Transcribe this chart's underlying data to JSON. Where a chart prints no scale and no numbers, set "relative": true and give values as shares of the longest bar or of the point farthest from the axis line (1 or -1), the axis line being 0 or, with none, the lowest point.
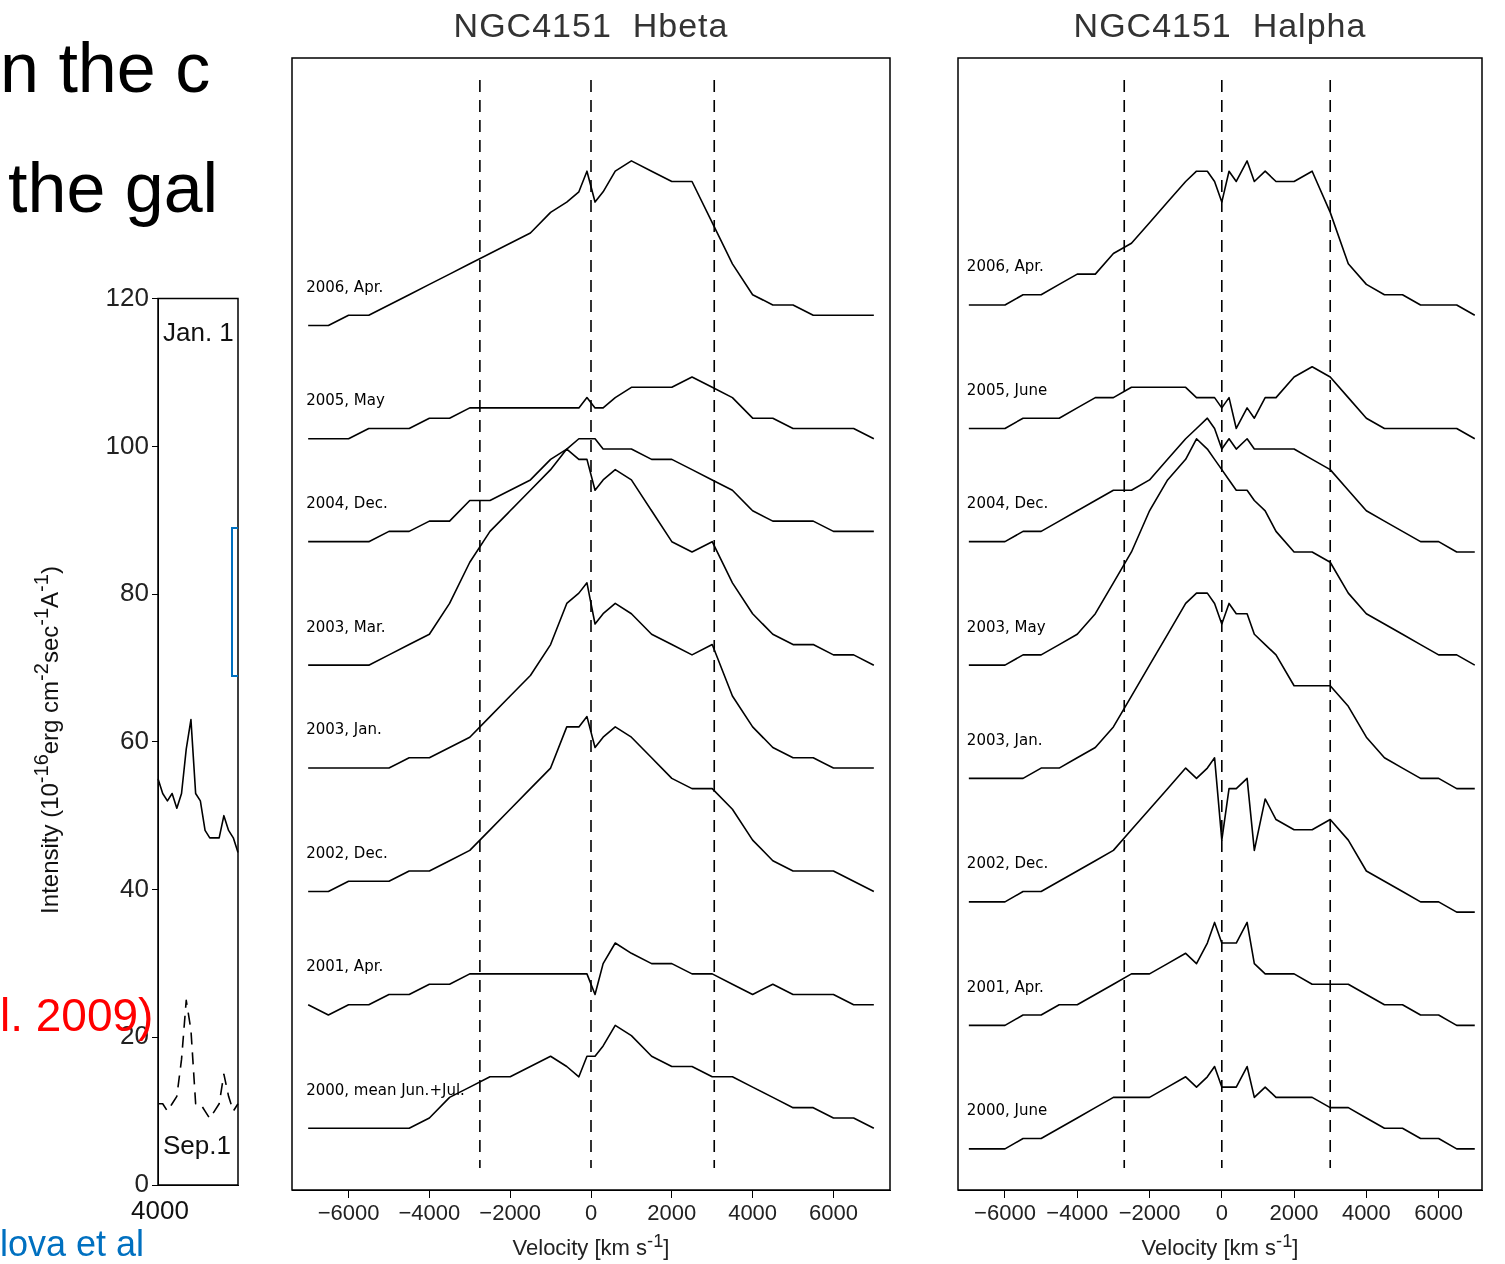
{
  "chart_data": [
    {
      "type": "line",
      "ylabel": "Intensity (10$^{-16}$erg cm$^{-2}$sec$^{-1}$A$^{-1}$)",
      "categories": [
        null,
        null,
        null,
        null,
        null,
        null,
        null,
        null,
        null,
        null,
        null,
        null,
        null,
        null,
        null,
        null,
        null,
        null
      ],
      "ylim": [
        0,
        120
      ],
      "yticks": [
        0,
        20,
        40,
        60,
        80,
        100,
        120
      ],
      "series": [
        {
          "color": "#000000",
          "values": [
            55,
            53,
            52,
            53,
            51,
            53,
            59,
            63,
            53,
            52,
            48,
            47,
            47,
            47,
            50,
            48,
            47,
            45
          ]
        },
        {
          "color": "#000000",
          "line_style": "dashed",
          "values": [
            11,
            11,
            10,
            11,
            12,
            17,
            25,
            21,
            11,
            11,
            10,
            9,
            10,
            11,
            15,
            12,
            10,
            11
          ]
        }
      ],
      "annotations": [
        "Jan. 1",
        "Sep.1",
        "n the c",
        "the gal",
        "l. 2009)",
        "lova et al",
        "4000"
      ]
    },
    {
      "type": "line",
      "relative": true,
      "title": "NGC4151  Hbeta",
      "xlabel": "Velocity [km s$^{-1}$]",
      "tick_labels": "x",
      "xlim": [
        -7400,
        7400
      ],
      "xticks": [
        {
          "value": -6000,
          "label": "−6000"
        },
        {
          "value": -4000,
          "label": "−4000"
        },
        {
          "value": -2000,
          "label": "−2000"
        },
        0,
        2000,
        4000,
        6000
      ],
      "x": [
        -7000,
        -6500,
        -6000,
        -5500,
        -5000,
        -4500,
        -4000,
        -3500,
        -3000,
        -2500,
        -2000,
        -1500,
        -1000,
        -600,
        -300,
        -100,
        100,
        300,
        600,
        1000,
        1500,
        2000,
        2500,
        3000,
        3500,
        4000,
        4500,
        5000,
        5500,
        6000,
        6500,
        7000
      ],
      "ref_lines": [
        {
          "axis": "x",
          "value": -2750,
          "line_style": "dashed"
        },
        {
          "axis": "x",
          "value": 0,
          "line_style": "dashed"
        },
        {
          "axis": "x",
          "value": 3050,
          "line_style": "dashed"
        }
      ],
      "series": [
        {
          "name": "2006, Apr.",
          "color": "#000000",
          "values": [
            0.84,
            0.84,
            0.85,
            0.85,
            0.86,
            0.87,
            0.88,
            0.89,
            0.9,
            0.91,
            0.92,
            0.93,
            0.95,
            0.96,
            0.97,
            0.99,
            0.96,
            0.97,
            0.99,
            1,
            0.99,
            0.98,
            0.98,
            0.94,
            0.9,
            0.87,
            0.86,
            0.86,
            0.85,
            0.85,
            0.85,
            0.85
          ]
        },
        {
          "name": "2005, May",
          "color": "#000000",
          "values": [
            0.73,
            0.73,
            0.73,
            0.74,
            0.74,
            0.74,
            0.75,
            0.75,
            0.76,
            0.76,
            0.76,
            0.76,
            0.76,
            0.76,
            0.76,
            0.77,
            0.76,
            0.76,
            0.77,
            0.78,
            0.78,
            0.78,
            0.79,
            0.78,
            0.77,
            0.75,
            0.75,
            0.74,
            0.74,
            0.74,
            0.74,
            0.73
          ]
        },
        {
          "name": "2004, Dec.",
          "color": "#000000",
          "values": [
            0.63,
            0.63,
            0.63,
            0.63,
            0.64,
            0.64,
            0.65,
            0.65,
            0.67,
            0.67,
            0.68,
            0.69,
            0.71,
            0.72,
            0.73,
            0.73,
            0.73,
            0.72,
            0.72,
            0.72,
            0.71,
            0.71,
            0.7,
            0.69,
            0.68,
            0.66,
            0.65,
            0.65,
            0.65,
            0.64,
            0.64,
            0.64
          ]
        },
        {
          "name": "2003, Mar.",
          "color": "#000000",
          "values": [
            0.51,
            0.51,
            0.51,
            0.51,
            0.52,
            0.53,
            0.54,
            0.57,
            0.61,
            0.64,
            0.66,
            0.68,
            0.7,
            0.72,
            0.71,
            0.71,
            0.68,
            0.69,
            0.7,
            0.69,
            0.66,
            0.63,
            0.62,
            0.63,
            0.59,
            0.56,
            0.54,
            0.53,
            0.53,
            0.52,
            0.52,
            0.51
          ]
        },
        {
          "name": "2003, Jan.",
          "color": "#000000",
          "values": [
            0.41,
            0.41,
            0.41,
            0.41,
            0.41,
            0.42,
            0.42,
            0.43,
            0.44,
            0.46,
            0.48,
            0.5,
            0.53,
            0.57,
            0.58,
            0.59,
            0.55,
            0.56,
            0.57,
            0.56,
            0.54,
            0.53,
            0.52,
            0.53,
            0.48,
            0.45,
            0.43,
            0.42,
            0.42,
            0.41,
            0.41,
            0.41
          ]
        },
        {
          "name": "2002, Dec.",
          "color": "#000000",
          "values": [
            0.29,
            0.29,
            0.3,
            0.3,
            0.3,
            0.31,
            0.31,
            0.32,
            0.33,
            0.35,
            0.37,
            0.39,
            0.41,
            0.45,
            0.45,
            0.46,
            0.43,
            0.44,
            0.45,
            0.44,
            0.42,
            0.4,
            0.39,
            0.39,
            0.37,
            0.34,
            0.32,
            0.31,
            0.31,
            0.31,
            0.3,
            0.29
          ]
        },
        {
          "name": "2001, Apr.",
          "color": "#000000",
          "values": [
            0.18,
            0.17,
            0.18,
            0.18,
            0.19,
            0.19,
            0.2,
            0.2,
            0.21,
            0.21,
            0.21,
            0.21,
            0.21,
            0.21,
            0.21,
            0.21,
            0.19,
            0.22,
            0.24,
            0.23,
            0.22,
            0.22,
            0.21,
            0.21,
            0.2,
            0.19,
            0.2,
            0.19,
            0.19,
            0.19,
            0.18,
            0.18
          ]
        },
        {
          "name": "2000, mean Jun.+Jul.",
          "color": "#000000",
          "values": [
            0.06,
            0.06,
            0.06,
            0.06,
            0.06,
            0.06,
            0.07,
            0.09,
            0.1,
            0.11,
            0.11,
            0.12,
            0.13,
            0.12,
            0.11,
            0.13,
            0.13,
            0.14,
            0.16,
            0.15,
            0.13,
            0.12,
            0.12,
            0.11,
            0.11,
            0.1,
            0.09,
            0.08,
            0.08,
            0.07,
            0.07,
            0.06
          ]
        }
      ]
    },
    {
      "type": "line",
      "relative": true,
      "title": "NGC4151  Halpha",
      "xlabel": "Velocity [km s$^{-1}$]",
      "tick_labels": "x",
      "xlim": [
        -7300,
        7200
      ],
      "xticks": [
        {
          "value": -6000,
          "label": "−6000"
        },
        {
          "value": -4000,
          "label": "−4000"
        },
        {
          "value": -2000,
          "label": "−2000"
        },
        0,
        2000,
        4000,
        6000
      ],
      "x": [
        -7000,
        -6500,
        -6000,
        -5500,
        -5000,
        -4500,
        -4000,
        -3500,
        -3000,
        -2500,
        -2000,
        -1500,
        -1000,
        -700,
        -400,
        -200,
        0,
        200,
        400,
        700,
        900,
        1200,
        1500,
        2000,
        2500,
        3000,
        3500,
        4000,
        4500,
        5000,
        5500,
        6000,
        6500,
        7000
      ],
      "ref_lines": [
        {
          "axis": "x",
          "value": -2700,
          "line_style": "dashed"
        },
        {
          "axis": "x",
          "value": 0,
          "line_style": "dashed"
        },
        {
          "axis": "x",
          "value": 3000,
          "line_style": "dashed"
        }
      ],
      "series": [
        {
          "name": "2006, Apr.",
          "color": "#000000",
          "values": [
            0.86,
            0.86,
            0.86,
            0.87,
            0.87,
            0.88,
            0.89,
            0.89,
            0.91,
            0.92,
            0.94,
            0.96,
            0.98,
            0.99,
            0.99,
            0.98,
            0.96,
            0.99,
            0.98,
            1,
            0.98,
            0.99,
            0.98,
            0.98,
            0.99,
            0.95,
            0.9,
            0.88,
            0.87,
            0.87,
            0.86,
            0.86,
            0.86,
            0.85
          ]
        },
        {
          "name": "2005, June",
          "color": "#000000",
          "values": [
            0.74,
            0.74,
            0.74,
            0.75,
            0.75,
            0.75,
            0.76,
            0.77,
            0.77,
            0.78,
            0.78,
            0.78,
            0.78,
            0.77,
            0.77,
            0.77,
            0.76,
            0.77,
            0.74,
            0.76,
            0.75,
            0.77,
            0.77,
            0.79,
            0.8,
            0.79,
            0.77,
            0.75,
            0.74,
            0.74,
            0.74,
            0.74,
            0.74,
            0.73
          ]
        },
        {
          "name": "2004, Dec.",
          "color": "#000000",
          "values": [
            0.63,
            0.63,
            0.63,
            0.64,
            0.64,
            0.65,
            0.66,
            0.67,
            0.68,
            0.68,
            0.69,
            0.71,
            0.73,
            0.74,
            0.75,
            0.74,
            0.72,
            0.73,
            0.72,
            0.73,
            0.72,
            0.72,
            0.72,
            0.72,
            0.71,
            0.7,
            0.68,
            0.66,
            0.65,
            0.64,
            0.63,
            0.63,
            0.62,
            0.62
          ]
        },
        {
          "name": "2003, May",
          "color": "#000000",
          "values": [
            0.51,
            0.51,
            0.51,
            0.52,
            0.52,
            0.53,
            0.54,
            0.56,
            0.59,
            0.62,
            0.66,
            0.69,
            0.71,
            0.73,
            0.72,
            0.71,
            0.7,
            0.69,
            0.68,
            0.68,
            0.67,
            0.66,
            0.64,
            0.62,
            0.62,
            0.61,
            0.58,
            0.56,
            0.55,
            0.54,
            0.53,
            0.52,
            0.52,
            0.51
          ]
        },
        {
          "name": "2003, Jan.",
          "color": "#000000",
          "values": [
            0.4,
            0.4,
            0.4,
            0.4,
            0.41,
            0.41,
            0.42,
            0.43,
            0.45,
            0.48,
            0.51,
            0.54,
            0.57,
            0.58,
            0.58,
            0.57,
            0.55,
            0.57,
            0.56,
            0.56,
            0.54,
            0.53,
            0.52,
            0.49,
            0.49,
            0.49,
            0.47,
            0.44,
            0.42,
            0.41,
            0.4,
            0.4,
            0.39,
            0.39
          ]
        },
        {
          "name": "2002, Dec.",
          "color": "#000000",
          "values": [
            0.28,
            0.28,
            0.28,
            0.29,
            0.29,
            0.3,
            0.31,
            0.32,
            0.33,
            0.35,
            0.37,
            0.39,
            0.41,
            0.4,
            0.41,
            0.42,
            0.34,
            0.39,
            0.39,
            0.4,
            0.33,
            0.38,
            0.36,
            0.35,
            0.35,
            0.36,
            0.34,
            0.31,
            0.3,
            0.29,
            0.28,
            0.28,
            0.27,
            0.27
          ]
        },
        {
          "name": "2001, Apr.",
          "color": "#000000",
          "values": [
            0.16,
            0.16,
            0.16,
            0.17,
            0.17,
            0.18,
            0.18,
            0.19,
            0.2,
            0.21,
            0.21,
            0.22,
            0.23,
            0.22,
            0.24,
            0.26,
            0.24,
            0.24,
            0.24,
            0.26,
            0.22,
            0.21,
            0.21,
            0.21,
            0.2,
            0.2,
            0.2,
            0.19,
            0.18,
            0.18,
            0.17,
            0.17,
            0.16,
            0.16
          ]
        },
        {
          "name": "2000, June",
          "color": "#000000",
          "values": [
            0.04,
            0.04,
            0.04,
            0.05,
            0.05,
            0.06,
            0.07,
            0.08,
            0.09,
            0.09,
            0.09,
            0.1,
            0.11,
            0.1,
            0.11,
            0.12,
            0.1,
            0.1,
            0.1,
            0.12,
            0.09,
            0.1,
            0.09,
            0.09,
            0.09,
            0.08,
            0.08,
            0.07,
            0.06,
            0.06,
            0.05,
            0.05,
            0.04,
            0.04
          ]
        }
      ]
    }
  ]
}
